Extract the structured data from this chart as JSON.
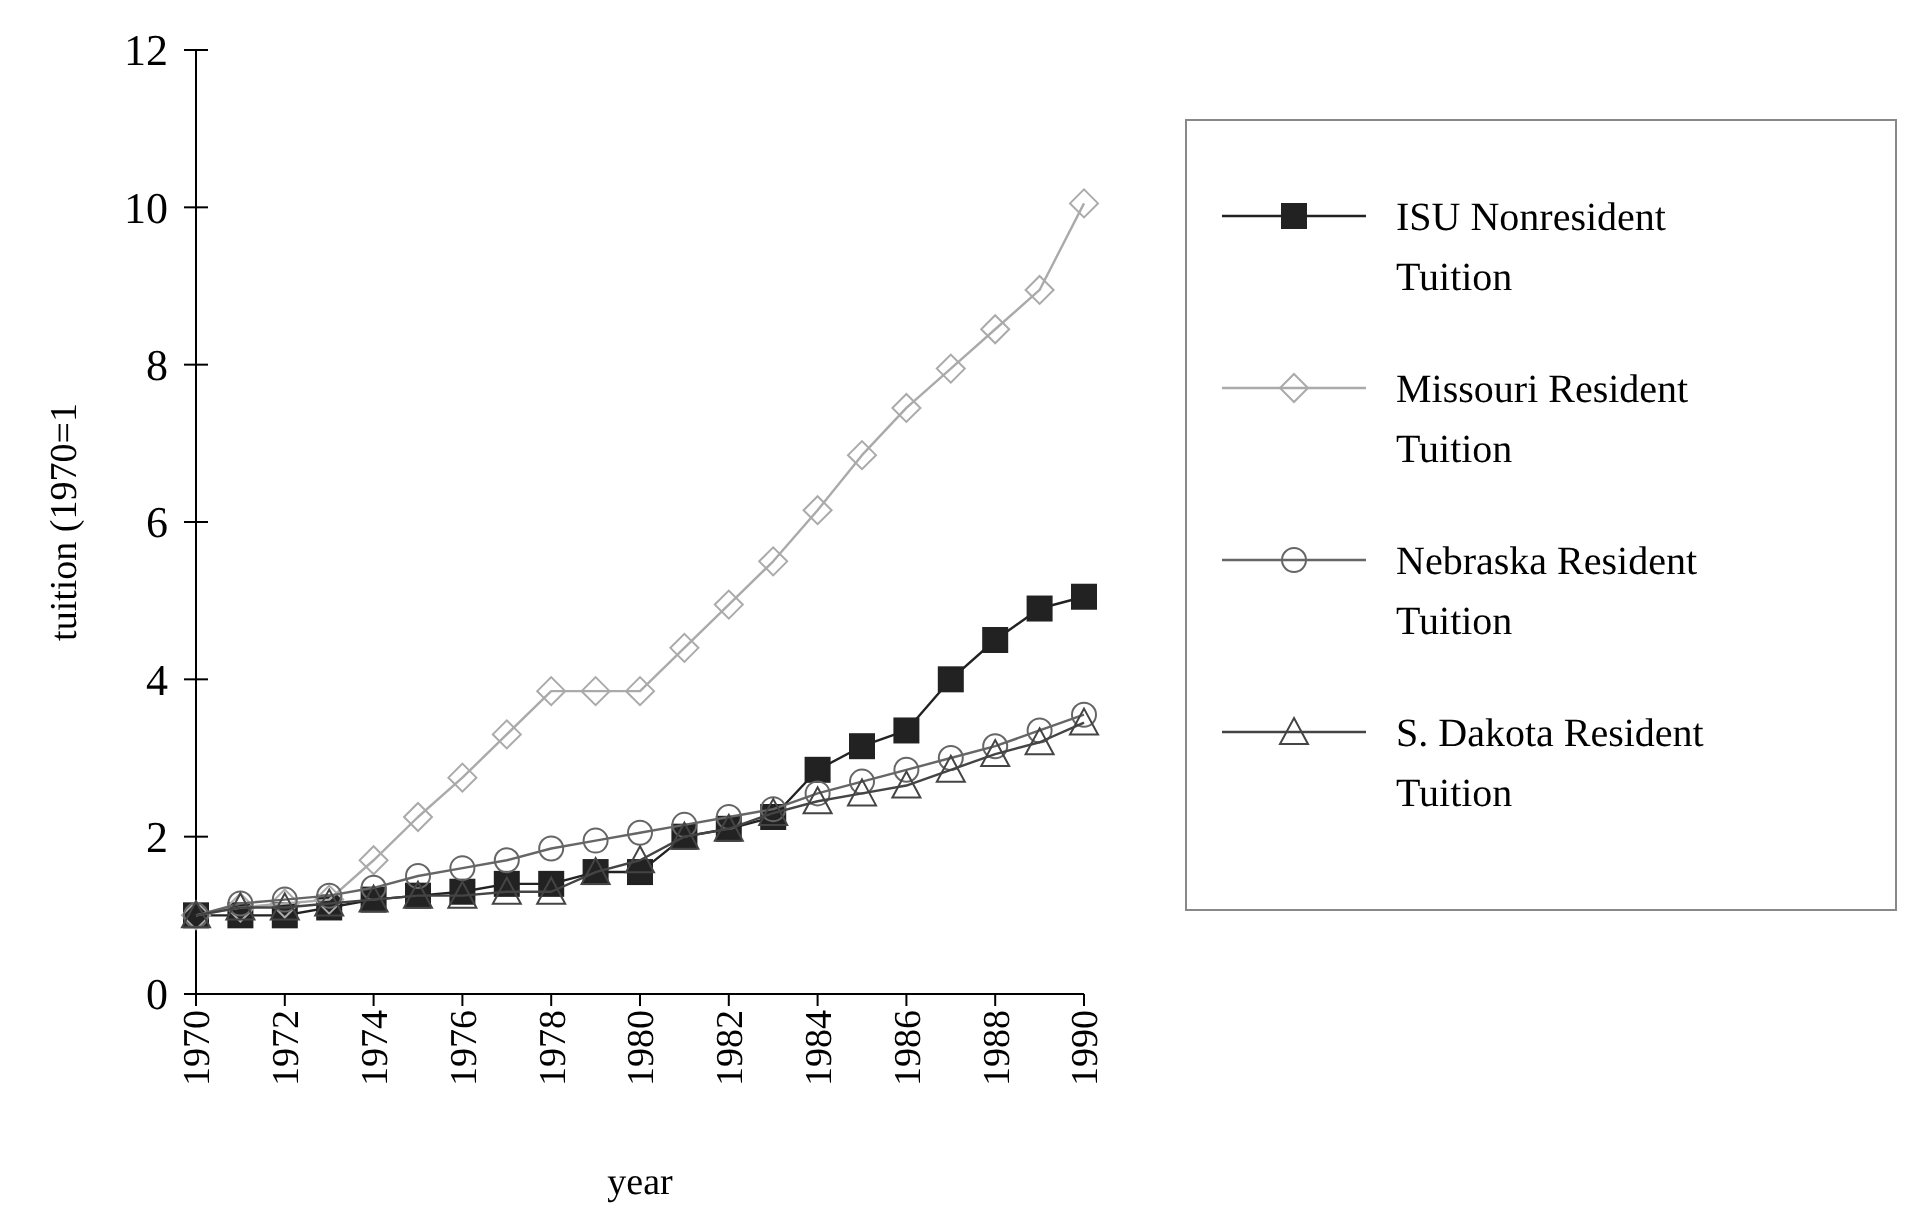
{
  "chart_data": {
    "type": "line",
    "xlabel": "year",
    "ylabel": "tuition (1970=1",
    "x": [
      1970,
      1971,
      1972,
      1973,
      1974,
      1975,
      1976,
      1977,
      1978,
      1979,
      1980,
      1981,
      1982,
      1983,
      1984,
      1985,
      1986,
      1987,
      1988,
      1989,
      1990
    ],
    "xlim": [
      1970,
      1990
    ],
    "xticks": [
      1970,
      1972,
      1974,
      1976,
      1978,
      1980,
      1982,
      1984,
      1986,
      1988,
      1990
    ],
    "ylim": [
      0,
      12
    ],
    "yticks": [
      0,
      2,
      4,
      6,
      8,
      10,
      12
    ],
    "legend": "right",
    "grid": false,
    "line_style": "solid",
    "series": [
      {
        "name": "ISU Nonresident Tuition",
        "color": "#222222",
        "marker": "square",
        "values": [
          1,
          1,
          1,
          1.1,
          1.2,
          1.25,
          1.3,
          1.4,
          1.4,
          1.55,
          1.55,
          2,
          2.1,
          2.25,
          2.85,
          3.15,
          3.35,
          4,
          4.5,
          4.9,
          5.05
        ]
      },
      {
        "name": "Missouri Resident Tuition",
        "color": "#aaaaaa",
        "marker": "diamond",
        "values": [
          1,
          1.1,
          1.15,
          1.2,
          1.7,
          2.25,
          2.75,
          3.3,
          3.85,
          3.85,
          3.85,
          4.4,
          4.95,
          5.5,
          6.15,
          6.85,
          7.45,
          7.95,
          8.45,
          8.95,
          10.05
        ]
      },
      {
        "name": "Nebraska Resident Tuition",
        "color": "#666666",
        "marker": "circle",
        "values": [
          1,
          1.15,
          1.2,
          1.25,
          1.35,
          1.5,
          1.6,
          1.7,
          1.85,
          1.95,
          2.05,
          2.15,
          2.25,
          2.35,
          2.55,
          2.7,
          2.85,
          3,
          3.15,
          3.35,
          3.55
        ]
      },
      {
        "name": "S. Dakota Resident Tuition",
        "color": "#444444",
        "marker": "triangle",
        "values": [
          1,
          1.1,
          1.1,
          1.15,
          1.2,
          1.25,
          1.25,
          1.3,
          1.3,
          1.55,
          1.7,
          2,
          2.1,
          2.3,
          2.45,
          2.55,
          2.65,
          2.85,
          3.05,
          3.2,
          3.45
        ]
      }
    ]
  }
}
